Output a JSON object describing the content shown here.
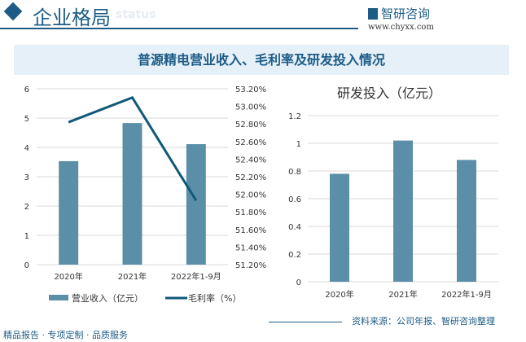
{
  "header": {
    "title": "企业格局",
    "subtitle_watermark": "status",
    "logo_text": "智研咨询",
    "url": "www.chyxx.com"
  },
  "banner": {
    "title": "普源精电营业收入、毛利率及研发投入情况"
  },
  "footer": {
    "left": "精品报告 · 专项定制 · 品质服务",
    "source": "资料来源：公司年报、智研咨询整理"
  },
  "colors": {
    "bar": "#5b8fa8",
    "line": "#0e5a78",
    "accent": "#1d5c86"
  },
  "chart_data": [
    {
      "type": "bar+line",
      "categories": [
        "2020年",
        "2021年",
        "2022年1-9月"
      ],
      "series": [
        {
          "name": "营业收入（亿元）",
          "type": "bar",
          "axis": "left",
          "values": [
            3.53,
            4.83,
            4.11
          ]
        },
        {
          "name": "毛利率（%）",
          "type": "line",
          "axis": "right",
          "values": [
            52.82,
            53.1,
            51.93
          ]
        }
      ],
      "ylim": [
        0,
        6
      ],
      "yticks": [
        "0",
        "1",
        "2",
        "3",
        "4",
        "5",
        "6"
      ],
      "y2lim": [
        51.2,
        53.2
      ],
      "y2ticks": [
        "51.20%",
        "51.40%",
        "51.60%",
        "51.80%",
        "52.00%",
        "52.20%",
        "52.40%",
        "52.60%",
        "52.80%",
        "53.00%",
        "53.20%"
      ],
      "grid": true,
      "legend": "bottom"
    },
    {
      "type": "bar",
      "title": "研发投入（亿元）",
      "categories": [
        "2020年",
        "2021年",
        "2022年1-9月"
      ],
      "values": [
        0.78,
        1.02,
        0.88
      ],
      "ylim": [
        0,
        1.2
      ],
      "yticks": [
        "0",
        "0.2",
        "0.4",
        "0.6",
        "0.8",
        "1",
        "1.2"
      ],
      "grid": true
    }
  ]
}
